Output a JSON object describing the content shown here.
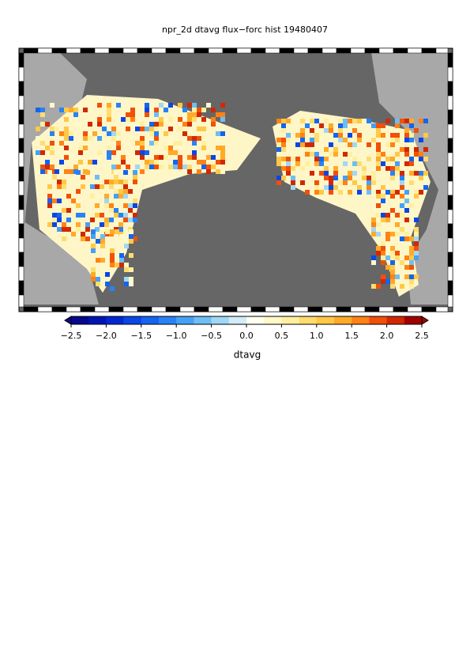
{
  "map": {
    "title": "npr_2d dtavg flux−forc hist 19480407",
    "colorbar": {
      "label": "dtavg",
      "lim": [
        -2.5,
        2.5
      ],
      "ticks": [
        {
          "value": -2.5,
          "label": "−2.5"
        },
        {
          "value": -2.0,
          "label": "−2.0"
        },
        {
          "value": -1.5,
          "label": "−1.5"
        },
        {
          "value": -1.0,
          "label": "−1.0"
        },
        {
          "value": -0.5,
          "label": "−0.5"
        },
        {
          "value": 0,
          "label": "0.0"
        },
        0.5,
        {
          "value": 1,
          "label": "1.0"
        },
        1.5,
        {
          "value": 2,
          "label": "2.0"
        },
        2.5
      ],
      "colors": [
        "#08088c",
        "#0014b4",
        "#0028d2",
        "#0a46e6",
        "#1464f0",
        "#2882f5",
        "#46a0f5",
        "#6ebef5",
        "#a0d7f5",
        "#d2ecf8",
        "#fffff0",
        "#fff8c8",
        "#fff0a0",
        "#ffdc6e",
        "#ffc846",
        "#ffaa28",
        "#ff8214",
        "#f0500a",
        "#d22800",
        "#a00000"
      ]
    }
  }
}
